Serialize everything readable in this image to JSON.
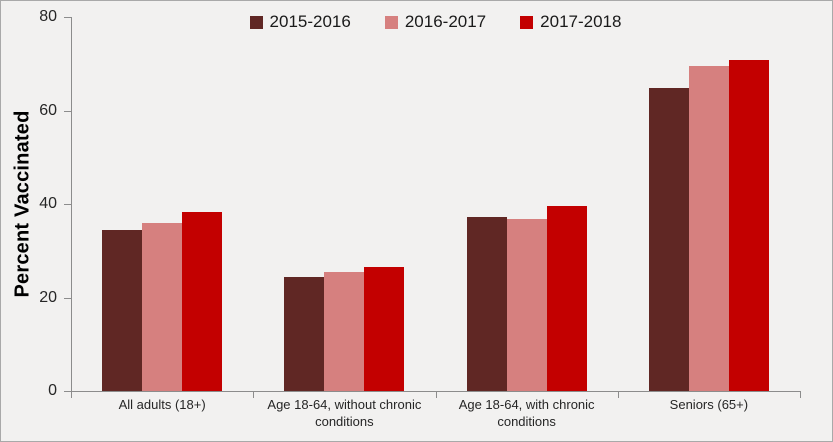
{
  "chart": {
    "y_axis_title": "Percent Vaccinated",
    "yticks": [
      0,
      20,
      40,
      60,
      80
    ]
  },
  "chart_data": {
    "type": "bar",
    "title": "",
    "xlabel": "",
    "ylabel": "Percent Vaccinated",
    "ylim": [
      0,
      80
    ],
    "ytick_interval": 20,
    "grid": false,
    "legend_position": "top-center",
    "categories": [
      "All adults (18+)",
      "Age 18-64, without chronic conditions",
      "Age 18-64, with chronic conditions",
      "Seniors (65+)"
    ],
    "series": [
      {
        "name": "2015-2016",
        "color": "#602724",
        "values": [
          34.4,
          24.4,
          37.2,
          64.8
        ]
      },
      {
        "name": "2016-2017",
        "color": "#d6807f",
        "values": [
          35.9,
          25.4,
          36.9,
          69.5
        ]
      },
      {
        "name": "2017-2018",
        "color": "#c30000",
        "values": [
          38.2,
          26.5,
          39.5,
          70.7
        ]
      }
    ]
  },
  "colors": {
    "background": "#f2f1f0",
    "axis_line": "#8c8c8c",
    "tick_text": "#262626",
    "border": "#a9a9a9"
  }
}
